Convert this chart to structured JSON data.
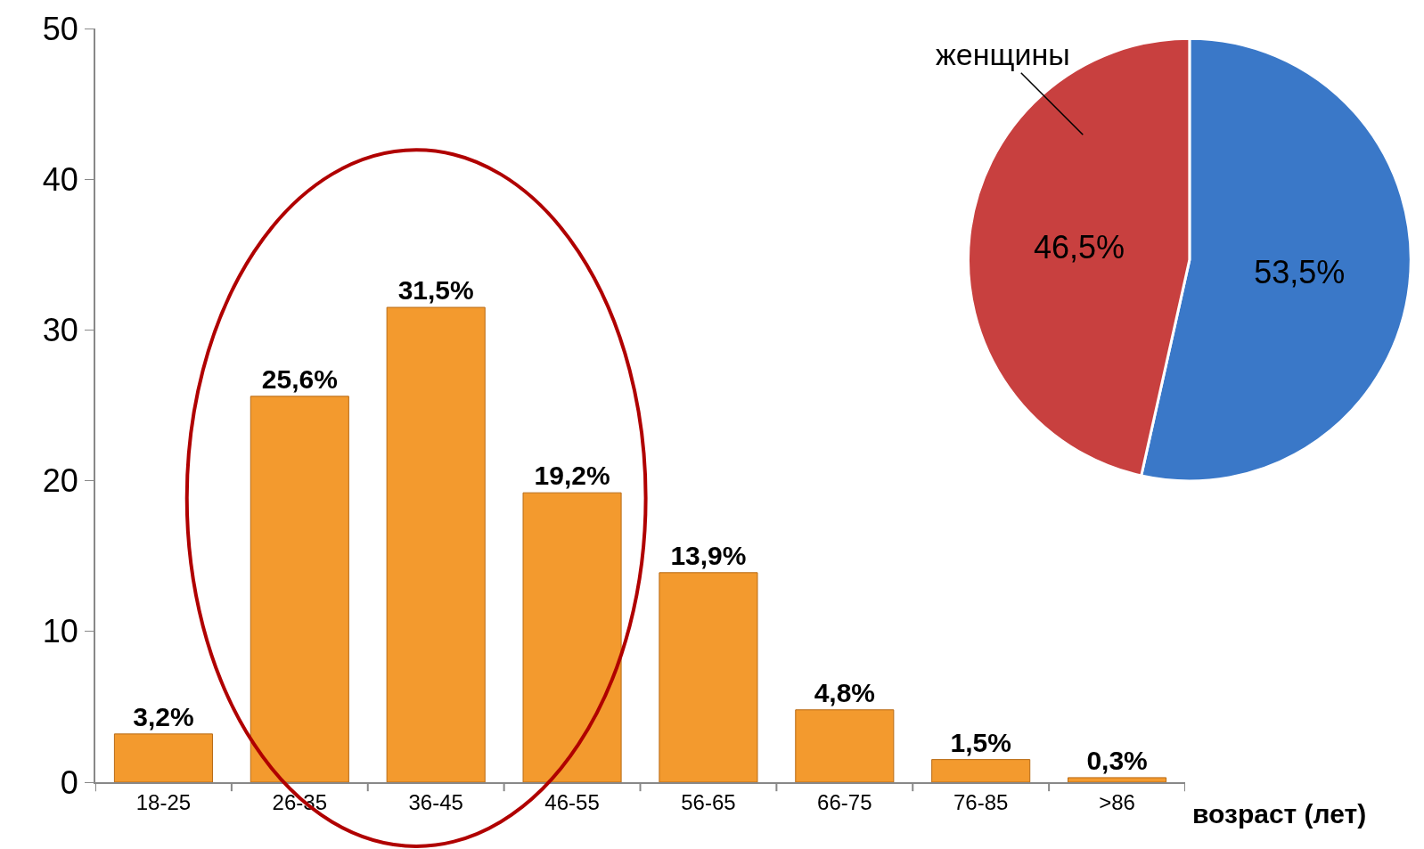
{
  "chart_data": [
    {
      "type": "bar",
      "xlabel": "возраст (лет)",
      "categories": [
        "18-25",
        "26-35",
        "36-45",
        "46-55",
        "56-65",
        "66-75",
        "76-85",
        ">86"
      ],
      "values": [
        3.2,
        25.6,
        31.5,
        19.2,
        13.9,
        4.8,
        1.5,
        0.3
      ],
      "value_labels": [
        "3,2%",
        "25,6%",
        "31,5%",
        "19,2%",
        "13,9%",
        "4,8%",
        "1,5%",
        "0,3%"
      ],
      "color": "#f39a2e",
      "ylim": [
        0,
        50
      ],
      "yticks": [
        0,
        10,
        20,
        30,
        40,
        50
      ],
      "grid": false,
      "legend": false
    },
    {
      "type": "pie",
      "categories": [
        null,
        "женщины"
      ],
      "values": [
        53.5,
        46.5
      ],
      "value_labels": [
        "53,5%",
        "46,5%"
      ],
      "colors": [
        "#3a78c8",
        "#c8403f"
      ],
      "legend": false
    }
  ]
}
